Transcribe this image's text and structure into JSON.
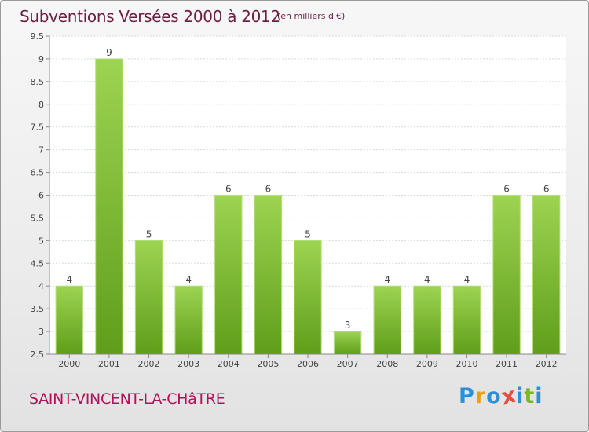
{
  "header": {
    "title": "Subventions Versées 2000 à 2012",
    "subtitle": "(en milliers d'€)"
  },
  "footer": {
    "commune": "SAINT-VINCENT-LA-CHâTRE",
    "logo": [
      "P",
      "r",
      "o",
      "x",
      "i",
      "t",
      "i"
    ]
  },
  "colors": {
    "bar_top": "#9dd452",
    "bar_bottom": "#5f9e1a",
    "title": "#6e1d43",
    "commune": "#b3125a",
    "logo": [
      "#2d8fd5",
      "#f39c12",
      "#2d8fd5",
      "#e74c3c",
      "#2d8fd5",
      "#7bb62a",
      "#2d8fd5"
    ]
  },
  "chart_data": {
    "type": "bar",
    "title": "Subventions Versées 2000 à 2012",
    "subtitle": "(en milliers d'€)",
    "xlabel": "",
    "ylabel": "",
    "categories": [
      "2000",
      "2001",
      "2002",
      "2003",
      "2004",
      "2005",
      "2006",
      "2007",
      "2008",
      "2009",
      "2010",
      "2011",
      "2012"
    ],
    "values": [
      4,
      9,
      5,
      4,
      6,
      6,
      5,
      3,
      4,
      4,
      4,
      6,
      6
    ],
    "data_labels": [
      "4",
      "9",
      "5",
      "4",
      "6",
      "6",
      "5",
      "3",
      "4",
      "4",
      "4",
      "6",
      "6"
    ],
    "ylim": [
      2.5,
      9.5
    ],
    "yticks": [
      "2.5",
      "3",
      "3.5",
      "4",
      "4.5",
      "5",
      "5.5",
      "6",
      "6.5",
      "7",
      "7.5",
      "8",
      "8.5",
      "9",
      "9.5"
    ],
    "grid": true,
    "legend": "none"
  }
}
